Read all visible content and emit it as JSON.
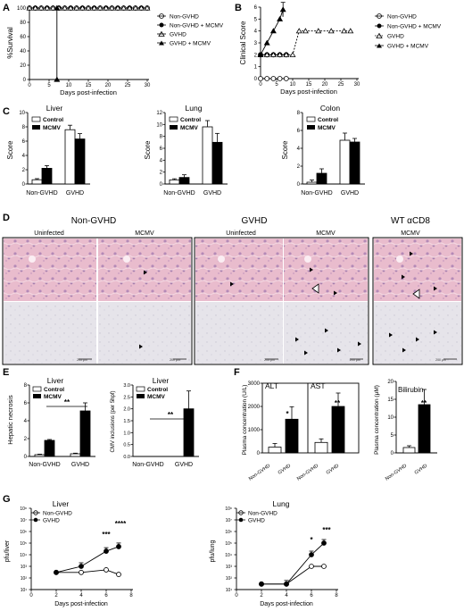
{
  "panels": {
    "A": {
      "label": "A",
      "ylabel": "%Survival",
      "xlabel": "Days post-infection",
      "legend": [
        "Non-GVHD",
        "Non-GVHD + MCMV",
        "GVHD",
        "GVHD + MCMV"
      ],
      "xticks": [
        "0",
        "5",
        "10",
        "15",
        "20",
        "25",
        "30"
      ],
      "yticks": [
        "0",
        "20",
        "40",
        "60",
        "80",
        "100"
      ]
    },
    "B": {
      "label": "B",
      "ylabel": "Clinical Score",
      "xlabel": "Days post-infection",
      "legend": [
        "Non-GVHD",
        "Non-GVHD + MCMV",
        "GVHD",
        "GVHD + MCMV"
      ],
      "xticks": [
        "0",
        "5",
        "10",
        "15",
        "20",
        "25",
        "30"
      ],
      "yticks": [
        "0",
        "1",
        "2",
        "3",
        "4",
        "5",
        "6"
      ],
      "dagger": "†"
    },
    "C": {
      "label": "C",
      "ylabel": "Score",
      "legend": [
        "Control",
        "MCMV"
      ],
      "groups": [
        "Non-GVHD",
        "GVHD"
      ],
      "subplots": [
        {
          "title": "Liver",
          "yticks": [
            "0",
            "2",
            "4",
            "6",
            "8",
            "10"
          ]
        },
        {
          "title": "Lung",
          "yticks": [
            "0",
            "2",
            "4",
            "6",
            "8",
            "10",
            "12"
          ]
        },
        {
          "title": "Colon",
          "yticks": [
            "0",
            "2",
            "4",
            "6",
            "8"
          ]
        }
      ]
    },
    "D": {
      "label": "D",
      "headers": [
        "Non-GVHD",
        "GVHD",
        "WT αCD8"
      ],
      "subheaders": [
        "Uninfected",
        "MCMV",
        "Uninfected",
        "MCMV",
        "MCMV"
      ],
      "scale_label": "200 μm"
    },
    "E": {
      "label": "E",
      "left": {
        "title": "Liver",
        "ylabel": "Hepatic necrosis",
        "yticks": [
          "0",
          "2",
          "4",
          "6",
          "8"
        ],
        "sig": "**"
      },
      "right": {
        "title": "Liver",
        "ylabel": "CMV inclusions (per 5hpf)",
        "yticks": [
          "0.0",
          "0.5",
          "1.0",
          "1.5",
          "2.0",
          "2.5",
          "3.0"
        ],
        "sig": "**"
      },
      "legend": [
        "Control",
        "MCMV"
      ],
      "groups": [
        "Non-GVHD",
        "GVHD"
      ]
    },
    "F": {
      "label": "F",
      "ylabel_left": "Plasma concentration (U/L)",
      "ylabel_right": "Plasma concentration (μM)",
      "alt": {
        "title": "ALT",
        "sig": "*"
      },
      "ast": {
        "title": "AST",
        "sig": "**"
      },
      "bili": {
        "title": "Bilirubin",
        "sig": "**"
      },
      "yticks_left": [
        "0",
        "1000",
        "2000",
        "3000"
      ],
      "yticks_right": [
        "0",
        "5",
        "10",
        "15",
        "20"
      ],
      "groups": [
        "Non-GVHD",
        "GVHD"
      ]
    },
    "G": {
      "label": "G",
      "liver": {
        "title": "Liver",
        "ylabel": "pfu/liver",
        "sig1": "***",
        "sig2": "****"
      },
      "lung": {
        "title": "Lung",
        "ylabel": "pfu/lung",
        "sig1": "*",
        "sig2": "***"
      },
      "xlabel": "Days post-infection",
      "legend": [
        "Non-GVHD",
        "GVHD"
      ],
      "xticks": [
        "0",
        "2",
        "4",
        "6",
        "8"
      ],
      "yticks": [
        "10¹",
        "10²",
        "10³",
        "10⁴",
        "10⁵",
        "10⁶",
        "10⁷",
        "10⁸"
      ]
    }
  },
  "chart_data": [
    {
      "panel": "A",
      "type": "line",
      "series": [
        {
          "name": "Non-GVHD",
          "x": [
            0,
            30
          ],
          "y": [
            100,
            100
          ]
        },
        {
          "name": "Non-GVHD + MCMV",
          "x": [
            0,
            30
          ],
          "y": [
            100,
            100
          ]
        },
        {
          "name": "GVHD",
          "x": [
            0,
            30
          ],
          "y": [
            100,
            100
          ]
        },
        {
          "name": "GVHD + MCMV",
          "x": [
            0,
            7,
            7
          ],
          "y": [
            100,
            100,
            0
          ]
        }
      ],
      "xlim": [
        0,
        30
      ],
      "ylim": [
        0,
        100
      ]
    },
    {
      "panel": "B",
      "type": "line",
      "series": [
        {
          "name": "Non-GVHD",
          "x": [
            0,
            2,
            4,
            6,
            8
          ],
          "y": [
            0,
            0,
            0,
            0,
            0
          ]
        },
        {
          "name": "Non-GVHD + MCMV",
          "x": [
            0,
            2,
            4,
            6,
            8
          ],
          "y": [
            2,
            2,
            2,
            2,
            2
          ]
        },
        {
          "name": "GVHD",
          "x": [
            0,
            2,
            4,
            6,
            8,
            10,
            12,
            14,
            18,
            22,
            26,
            28
          ],
          "y": [
            2,
            2,
            2,
            2,
            2,
            2,
            4,
            4,
            4,
            4,
            4,
            4
          ]
        },
        {
          "name": "GVHD + MCMV",
          "x": [
            0,
            2,
            4,
            6,
            7
          ],
          "y": [
            2,
            3,
            4,
            5,
            5.8
          ]
        }
      ],
      "xlim": [
        0,
        30
      ],
      "ylim": [
        0,
        6
      ]
    },
    {
      "panel": "C-Liver",
      "type": "bar",
      "categories": [
        "Non-GVHD",
        "GVHD"
      ],
      "series": [
        {
          "name": "Control",
          "values": [
            0.6,
            7.6
          ]
        },
        {
          "name": "MCMV",
          "values": [
            2.2,
            6.3
          ]
        }
      ],
      "ylim": [
        0,
        10
      ]
    },
    {
      "panel": "C-Lung",
      "type": "bar",
      "categories": [
        "Non-GVHD",
        "GVHD"
      ],
      "series": [
        {
          "name": "Control",
          "values": [
            0.7,
            9.6
          ]
        },
        {
          "name": "MCMV",
          "values": [
            1.1,
            7.0
          ]
        }
      ],
      "ylim": [
        0,
        12
      ]
    },
    {
      "panel": "C-Colon",
      "type": "bar",
      "categories": [
        "Non-GVHD",
        "GVHD"
      ],
      "series": [
        {
          "name": "Control",
          "values": [
            0.2,
            4.9
          ]
        },
        {
          "name": "MCMV",
          "values": [
            1.2,
            4.7
          ]
        }
      ],
      "ylim": [
        0,
        8
      ]
    },
    {
      "panel": "E-Necrosis",
      "type": "bar",
      "categories": [
        "Non-GVHD",
        "GVHD"
      ],
      "series": [
        {
          "name": "Control",
          "values": [
            0.2,
            0.3
          ]
        },
        {
          "name": "MCMV",
          "values": [
            1.8,
            5.1
          ]
        }
      ],
      "ylim": [
        0,
        8
      ]
    },
    {
      "panel": "E-Inclusions",
      "type": "bar",
      "categories": [
        "Non-GVHD",
        "GVHD"
      ],
      "series": [
        {
          "name": "Control",
          "values": [
            0,
            0
          ]
        },
        {
          "name": "MCMV",
          "values": [
            0,
            2.0
          ]
        }
      ],
      "ylim": [
        0,
        3
      ]
    },
    {
      "panel": "F-ALT",
      "type": "bar",
      "categories": [
        "Non-GVHD",
        "GVHD"
      ],
      "values": [
        250,
        1450
      ],
      "ylim": [
        0,
        3000
      ]
    },
    {
      "panel": "F-AST",
      "type": "bar",
      "categories": [
        "Non-GVHD",
        "GVHD"
      ],
      "values": [
        450,
        2000
      ],
      "ylim": [
        0,
        3000
      ]
    },
    {
      "panel": "F-Bilirubin",
      "type": "bar",
      "categories": [
        "Non-GVHD",
        "GVHD"
      ],
      "values": [
        1.5,
        13.5
      ],
      "ylim": [
        0,
        20
      ]
    },
    {
      "panel": "G-Liver",
      "type": "line",
      "log_y": true,
      "series": [
        {
          "name": "Non-GVHD",
          "x": [
            2,
            4,
            6,
            7
          ],
          "y": [
            300,
            300,
            500,
            200
          ]
        },
        {
          "name": "GVHD",
          "x": [
            2,
            4,
            6,
            7
          ],
          "y": [
            300,
            1000,
            20000,
            50000
          ]
        }
      ],
      "xlim": [
        0,
        8
      ],
      "ylim": [
        10,
        100000000
      ]
    },
    {
      "panel": "G-Lung",
      "type": "line",
      "log_y": true,
      "series": [
        {
          "name": "Non-GVHD",
          "x": [
            2,
            4,
            6,
            7
          ],
          "y": [
            30,
            30,
            1000,
            1000
          ]
        },
        {
          "name": "GVHD",
          "x": [
            2,
            4,
            6,
            7
          ],
          "y": [
            30,
            30,
            10000,
            100000
          ]
        }
      ],
      "xlim": [
        0,
        8
      ],
      "ylim": [
        10,
        100000000
      ]
    }
  ]
}
